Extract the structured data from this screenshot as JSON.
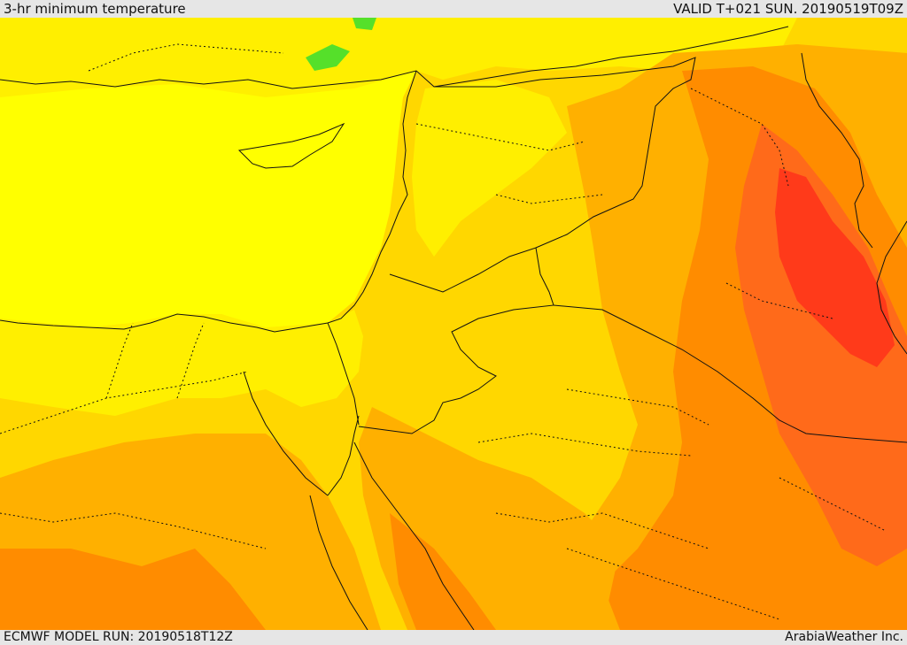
{
  "header": {
    "title": "3-hr minimum temperature",
    "valid": "VALID T+021 SUN. 20190519T09Z"
  },
  "footer": {
    "model_run": "ECMWF MODEL RUN: 20190518T12Z",
    "credit": "ArabiaWeather Inc."
  },
  "colors": {
    "bright_yellow": "#ffff00",
    "light_yellow": "#ffef00",
    "gold": "#ffd700",
    "light_orange": "#ffb000",
    "orange": "#ff8c00",
    "dark_orange": "#ff6a1a",
    "red": "#ff3a1a",
    "green": "#55e02a",
    "border": "#111111"
  }
}
